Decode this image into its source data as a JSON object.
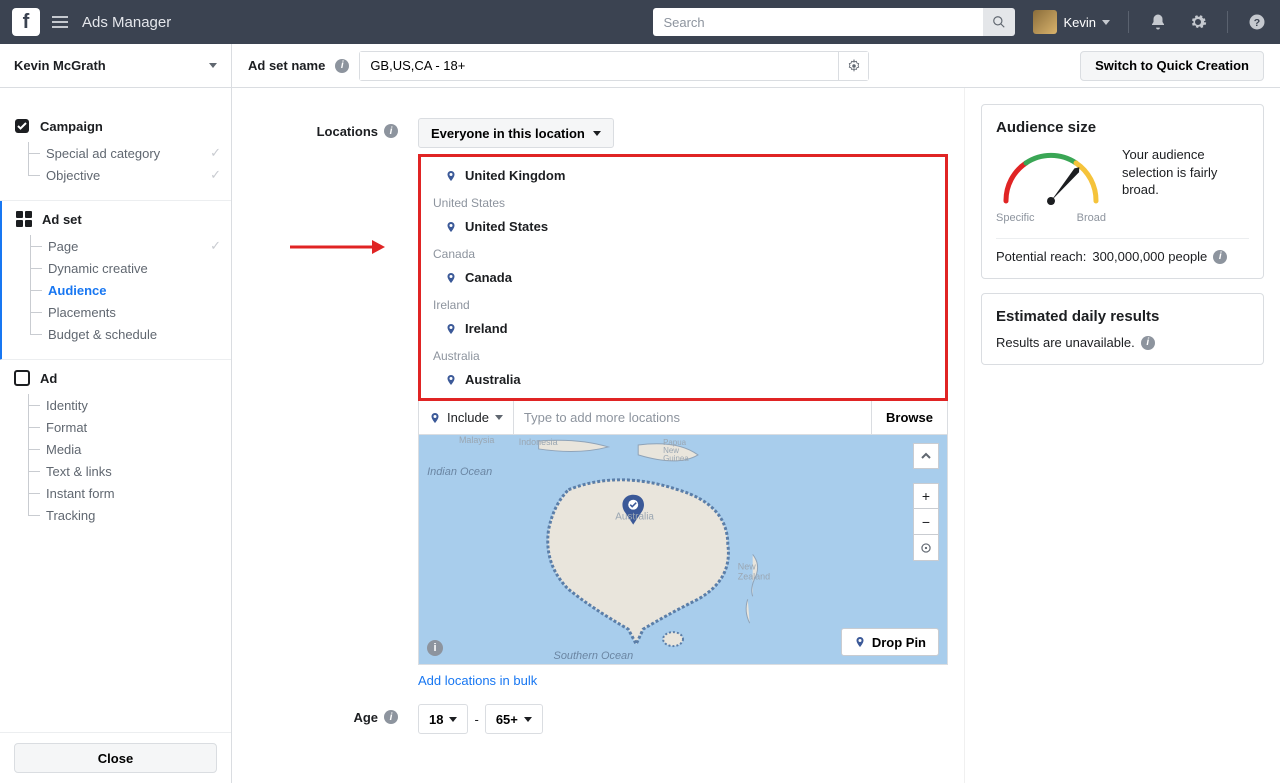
{
  "nav": {
    "title": "Ads Manager",
    "search_placeholder": "Search",
    "username": "Kevin"
  },
  "account": {
    "name": "Kevin McGrath",
    "id": ""
  },
  "sidebar": {
    "campaign": {
      "title": "Campaign",
      "items": [
        {
          "label": "Special ad category",
          "done": true
        },
        {
          "label": "Objective",
          "done": true
        }
      ]
    },
    "adset": {
      "title": "Ad set",
      "items": [
        {
          "label": "Page",
          "done": true
        },
        {
          "label": "Dynamic creative"
        },
        {
          "label": "Audience",
          "active": true
        },
        {
          "label": "Placements"
        },
        {
          "label": "Budget & schedule"
        }
      ]
    },
    "ad": {
      "title": "Ad",
      "items": [
        {
          "label": "Identity"
        },
        {
          "label": "Format"
        },
        {
          "label": "Media"
        },
        {
          "label": "Text & links"
        },
        {
          "label": "Instant form"
        },
        {
          "label": "Tracking"
        }
      ]
    },
    "close": "Close"
  },
  "header": {
    "adset_name_label": "Ad set name",
    "adset_name_value": "GB,US,CA - 18+",
    "switch_btn": "Switch to Quick Creation"
  },
  "locations": {
    "label": "Locations",
    "mode_label": "Everyone in this location",
    "groups": [
      {
        "header": "",
        "items": [
          "United Kingdom"
        ]
      },
      {
        "header": "United States",
        "items": [
          "United States"
        ]
      },
      {
        "header": "Canada",
        "items": [
          "Canada"
        ]
      },
      {
        "header": "Ireland",
        "items": [
          "Ireland"
        ]
      },
      {
        "header": "Australia",
        "items": [
          "Australia"
        ]
      }
    ],
    "include_label": "Include",
    "add_placeholder": "Type to add more locations",
    "browse_label": "Browse",
    "drop_pin_label": "Drop Pin",
    "bulk_link": "Add locations in bulk",
    "map_labels": {
      "indian_ocean": "Indian Ocean",
      "southern_ocean": "Southern Ocean",
      "australia": "Australia",
      "new_zealand": "New\nZealand",
      "png": "Papua\nNew\nGuinea",
      "indonesia": "Indonesia",
      "malaysia": "Malaysia"
    },
    "pin_color": "#3b5998",
    "highlight_color": "#e02424"
  },
  "age": {
    "label": "Age",
    "from": "18",
    "to": "65+"
  },
  "audience_card": {
    "title": "Audience size",
    "blurb": "Your audience selection is fairly broad.",
    "specific": "Specific",
    "broad": "Broad",
    "reach_label": "Potential reach:",
    "reach_value": "300,000,000 people",
    "gauge": {
      "colors": {
        "red": "#e02424",
        "yellow": "#f5c33b",
        "green": "#3aa655"
      },
      "needle_angle_deg": 40
    }
  },
  "results_card": {
    "title": "Estimated daily results",
    "text": "Results are unavailable."
  }
}
